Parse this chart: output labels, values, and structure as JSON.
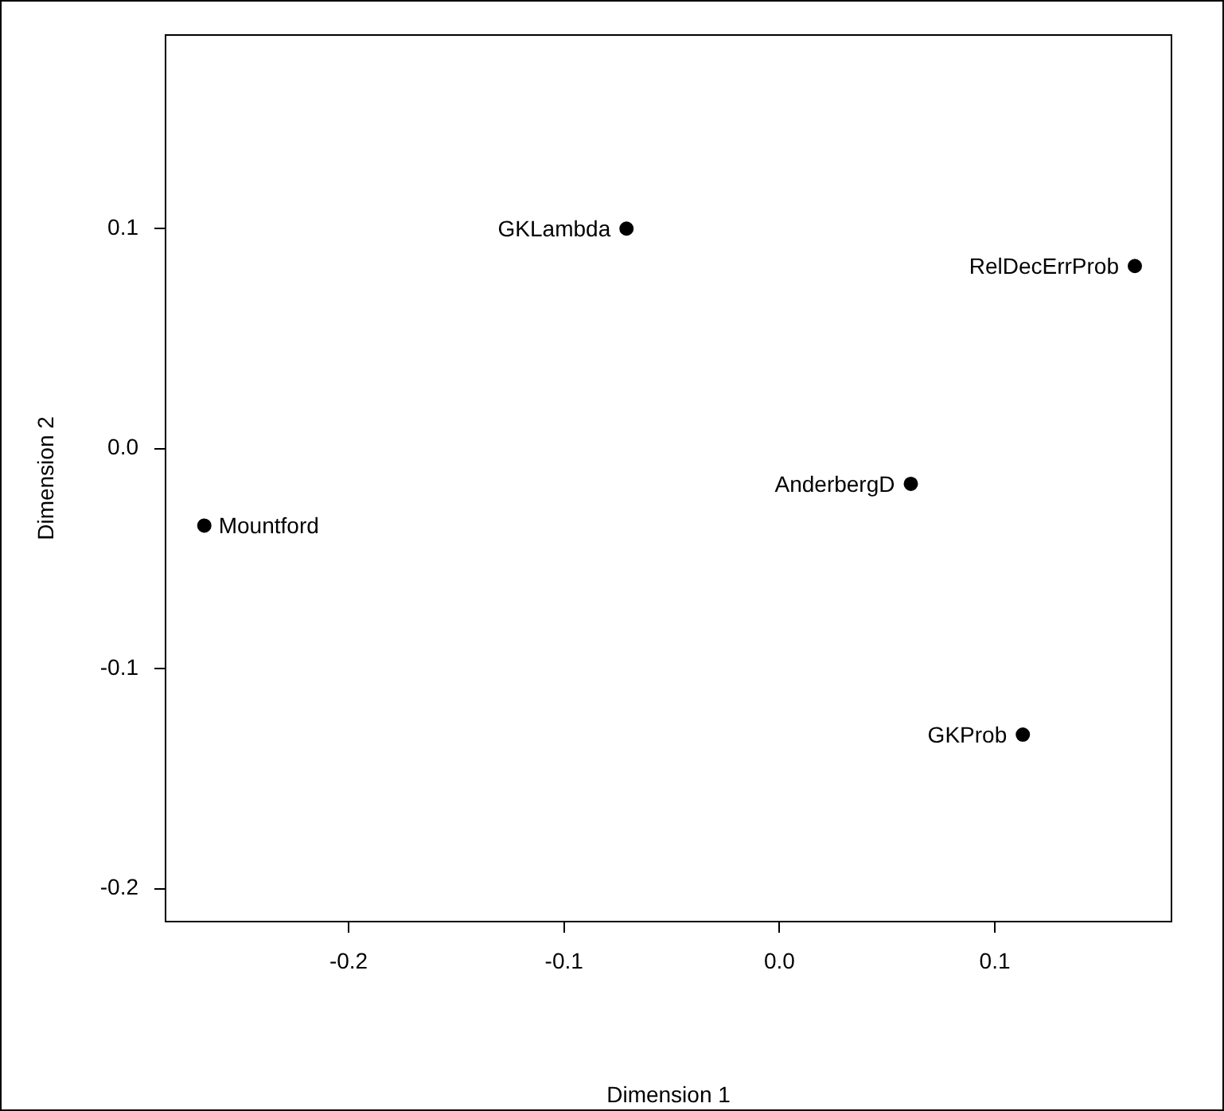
{
  "chart_data": {
    "type": "scatter",
    "xlabel": "Dimension 1",
    "ylabel": "Dimension 2",
    "x": [
      -0.071,
      0.165,
      0.061,
      -0.267,
      0.113
    ],
    "series": [
      {
        "color": "#000000",
        "values": [
          0.1,
          0.083,
          -0.016,
          -0.035,
          -0.13
        ]
      }
    ],
    "xlim": [
      -0.285,
      0.182
    ],
    "xticks": [
      {
        "value": -0.2,
        "label": "-0.2"
      },
      {
        "value": -0.1,
        "label": "-0.1"
      },
      {
        "value": 0,
        "label": "0.0"
      },
      {
        "value": 0.1,
        "label": "0.1"
      }
    ],
    "ylim": [
      -0.215,
      0.188
    ],
    "yticks": [
      {
        "value": -0.2,
        "label": "-0.2"
      },
      {
        "value": -0.1,
        "label": "-0.1"
      },
      {
        "value": 0,
        "label": "0.0"
      },
      {
        "value": 0.1,
        "label": "0.1"
      }
    ],
    "annotations": [
      {
        "text": "GKLambda",
        "x": -0.071,
        "y": 0.1
      },
      {
        "text": "RelDecErrProb",
        "x": 0.165,
        "y": 0.083
      },
      {
        "text": "AnderbergD",
        "x": 0.061,
        "y": -0.016
      },
      {
        "text": "Mountford",
        "x": -0.267,
        "y": -0.035
      },
      {
        "text": "GKProb",
        "x": 0.113,
        "y": -0.13
      }
    ],
    "grid": false,
    "legend": false,
    "marker": "circle"
  }
}
